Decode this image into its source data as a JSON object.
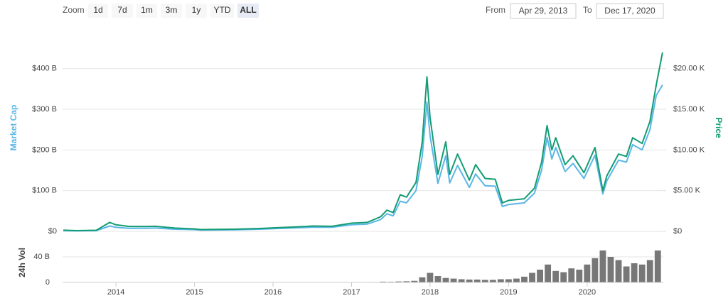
{
  "range_selector": {
    "zoom_label": "Zoom",
    "buttons": [
      "1d",
      "7d",
      "1m",
      "3m",
      "1y",
      "YTD",
      "ALL"
    ],
    "active_button": 6,
    "from_label": "From",
    "from": "Apr 29, 2013",
    "to_label": "To",
    "to": "Dec 17, 2020"
  },
  "chart_data": [
    {
      "type": "line",
      "x": [
        2013.33,
        2013.5,
        2013.75,
        2013.92,
        2014.0,
        2014.17,
        2014.42,
        2014.5,
        2014.75,
        2015.0,
        2015.08,
        2015.5,
        2015.83,
        2016.0,
        2016.42,
        2016.5,
        2016.75,
        2017.0,
        2017.2,
        2017.37,
        2017.45,
        2017.53,
        2017.62,
        2017.7,
        2017.82,
        2017.9,
        2017.96,
        2018.0,
        2018.1,
        2018.2,
        2018.25,
        2018.35,
        2018.5,
        2018.58,
        2018.7,
        2018.83,
        2018.92,
        2019.0,
        2019.2,
        2019.33,
        2019.42,
        2019.49,
        2019.55,
        2019.6,
        2019.72,
        2019.82,
        2019.96,
        2020.1,
        2020.2,
        2020.25,
        2020.4,
        2020.5,
        2020.58,
        2020.7,
        2020.8,
        2020.88,
        2020.96
      ],
      "series": [
        {
          "name": "Market Cap",
          "color": "#5bb6e5",
          "axis": "y",
          "values": [
            1.5,
            1.0,
            1.5,
            13,
            9.7,
            7.4,
            7.7,
            8.1,
            5.3,
            4.1,
            3.0,
            3.7,
            5.2,
            6.5,
            9.4,
            10.2,
            9.9,
            16.1,
            17.8,
            29,
            43,
            38,
            74,
            70,
            100,
            184,
            318,
            235,
            118,
            186,
            119,
            162,
            108,
            141,
            112,
            111,
            61,
            66,
            70,
            94,
            150,
            231,
            178,
            206,
            147,
            167,
            130,
            187,
            92,
            124,
            175,
            170,
            213,
            200,
            250,
            334,
            360
          ]
        },
        {
          "name": "Price",
          "color": "#149c74",
          "axis": "y2",
          "values": [
            140,
            90,
            130,
            1100,
            800,
            600,
            600,
            620,
            400,
            300,
            220,
            260,
            350,
            430,
            600,
            650,
            620,
            1000,
            1100,
            1800,
            2600,
            2300,
            4500,
            4200,
            6000,
            11000,
            19000,
            14000,
            7000,
            11000,
            7000,
            9500,
            6300,
            8200,
            6500,
            6400,
            3500,
            3800,
            4000,
            5300,
            8500,
            13000,
            10000,
            11500,
            8200,
            9300,
            7200,
            10300,
            5000,
            6800,
            9500,
            9200,
            11500,
            10800,
            13500,
            18000,
            22000
          ]
        }
      ],
      "xlim": [
        2013.32,
        2020.97
      ],
      "xticks": [
        2014,
        2015,
        2016,
        2017,
        2018,
        2019,
        2020
      ],
      "ylim": [
        0,
        464
      ],
      "yticks": [
        {
          "value": 0,
          "label": "$0"
        },
        {
          "value": 100,
          "label": "$100 B"
        },
        {
          "value": 200,
          "label": "$200 B"
        },
        {
          "value": 300,
          "label": "$300 B"
        },
        {
          "value": 400,
          "label": "$400 B"
        }
      ],
      "y2lim": [
        0,
        23200
      ],
      "y2ticks": [
        {
          "value": 0,
          "label": "$0"
        },
        {
          "value": 5000,
          "label": "$5.00 K"
        },
        {
          "value": 10000,
          "label": "$10.00 K"
        },
        {
          "value": 15000,
          "label": "$15.00 K"
        },
        {
          "value": 20000,
          "label": "$20.00 K"
        }
      ],
      "grid": true
    },
    {
      "type": "bar",
      "y_label": "24h Vol",
      "color": "#777777",
      "x": [
        2013.4,
        2013.5,
        2013.6,
        2013.7,
        2013.8,
        2013.9,
        2014.0,
        2014.1,
        2014.2,
        2014.3,
        2014.4,
        2014.5,
        2014.6,
        2014.7,
        2014.8,
        2014.9,
        2015.0,
        2015.1,
        2015.2,
        2015.3,
        2015.4,
        2015.5,
        2015.6,
        2015.7,
        2015.8,
        2015.9,
        2016.0,
        2016.1,
        2016.2,
        2016.3,
        2016.4,
        2016.5,
        2016.6,
        2016.7,
        2016.8,
        2016.9,
        2017.0,
        2017.1,
        2017.2,
        2017.3,
        2017.4,
        2017.5,
        2017.6,
        2017.7,
        2017.8,
        2017.9,
        2018.0,
        2018.1,
        2018.2,
        2018.3,
        2018.4,
        2018.5,
        2018.6,
        2018.7,
        2018.8,
        2018.9,
        2019.0,
        2019.1,
        2019.2,
        2019.3,
        2019.4,
        2019.5,
        2019.6,
        2019.7,
        2019.8,
        2019.9,
        2020.0,
        2020.1,
        2020.2,
        2020.3,
        2020.4,
        2020.5,
        2020.6,
        2020.7,
        2020.8,
        2020.9
      ],
      "values": [
        0.02,
        0.02,
        0.03,
        0.03,
        0.05,
        0.1,
        0.06,
        0.05,
        0.04,
        0.03,
        0.03,
        0.03,
        0.02,
        0.02,
        0.02,
        0.02,
        0.02,
        0.03,
        0.03,
        0.03,
        0.03,
        0.03,
        0.03,
        0.04,
        0.05,
        0.06,
        0.08,
        0.1,
        0.1,
        0.1,
        0.1,
        0.1,
        0.1,
        0.12,
        0.15,
        0.2,
        0.3,
        0.3,
        0.4,
        0.6,
        1.2,
        1.0,
        1.5,
        1.8,
        2.5,
        8,
        15,
        10,
        7,
        6,
        5,
        4.5,
        4.5,
        4,
        4,
        5,
        5,
        6,
        9,
        15,
        20,
        28,
        18,
        16,
        22,
        20,
        28,
        38,
        50,
        40,
        35,
        25,
        30,
        28,
        35,
        50
      ],
      "ylim": [
        0,
        65
      ],
      "yticks": [
        0,
        {
          "value": 40,
          "label": "40 B"
        }
      ]
    }
  ]
}
